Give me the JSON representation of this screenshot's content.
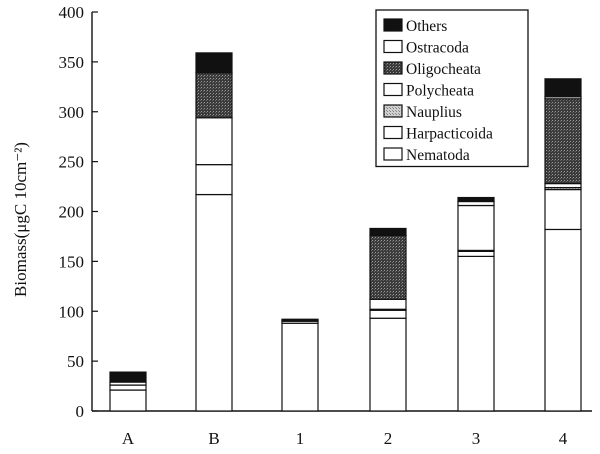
{
  "chart_data": {
    "type": "bar",
    "stacked": true,
    "categories": [
      "A",
      "B",
      "1",
      "2",
      "3",
      "4"
    ],
    "ylabel": "Biomass(μgC 10cm⁻²)",
    "ylim": [
      0,
      400
    ],
    "yticks": [
      0,
      50,
      100,
      150,
      200,
      250,
      300,
      350,
      400
    ],
    "grid": false,
    "legend_position": "top-right",
    "series": [
      {
        "name": "Nematoda",
        "values": [
          21,
          217,
          88,
          93,
          155,
          182
        ],
        "pattern": "white"
      },
      {
        "name": "Harpacticoida",
        "values": [
          5,
          30,
          2,
          8,
          5,
          40
        ],
        "pattern": "white"
      },
      {
        "name": "Nauplius",
        "values": [
          0,
          0,
          1,
          1,
          1,
          2
        ],
        "pattern": "stipple-light"
      },
      {
        "name": "Polycheata",
        "values": [
          0,
          47,
          0,
          10,
          45,
          4
        ],
        "pattern": "white"
      },
      {
        "name": "Oligocheata",
        "values": [
          0,
          45,
          0,
          64,
          0,
          85
        ],
        "pattern": "stipple-dark"
      },
      {
        "name": "Ostracoda",
        "values": [
          3,
          0,
          1,
          0,
          4,
          2
        ],
        "pattern": "white"
      },
      {
        "name": "Others",
        "values": [
          10,
          20,
          0,
          7,
          4,
          18
        ],
        "pattern": "black"
      }
    ],
    "legend_order": [
      "Others",
      "Ostracoda",
      "Oligocheata",
      "Polycheata",
      "Nauplius",
      "Harpacticoida",
      "Nematoda"
    ]
  }
}
